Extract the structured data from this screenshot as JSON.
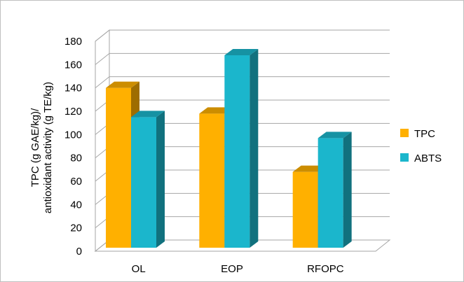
{
  "chart_data": {
    "type": "bar",
    "categories": [
      "OL",
      "EOP",
      "RFOPC"
    ],
    "series": [
      {
        "name": "TPC",
        "values": [
          140,
          118,
          68
        ],
        "color": "#FFB000"
      },
      {
        "name": "ABTS",
        "values": [
          115,
          168,
          97
        ],
        "color": "#1BB6CC"
      }
    ],
    "ylabel_line1": "TPC (g GAE/kg)/",
    "ylabel_line2": "antioxidant activity (g TE/kg)",
    "ylim": [
      0,
      180
    ],
    "yticks": [
      "0",
      "20",
      "40",
      "60",
      "80",
      "100",
      "120",
      "140",
      "160",
      "180"
    ],
    "grid": true,
    "legend_position": "right",
    "style": "3d-column"
  }
}
